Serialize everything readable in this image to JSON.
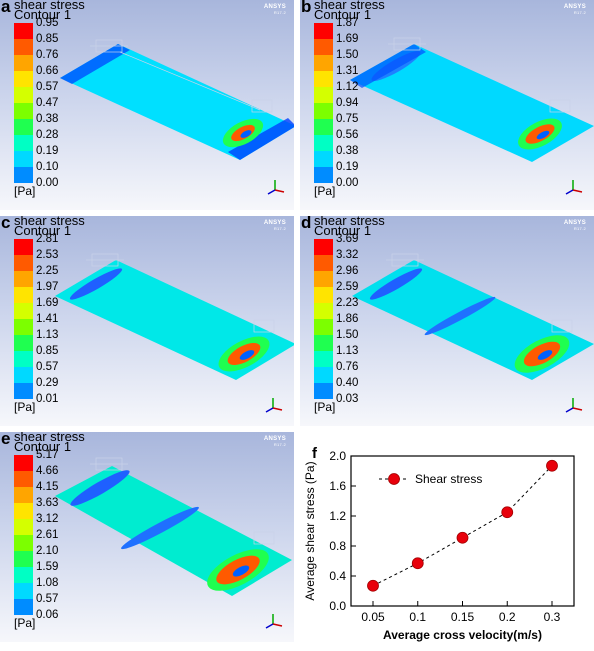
{
  "panels": [
    {
      "label": "a",
      "title": "shear stress",
      "subtitle": "Contour 1",
      "ticks": [
        "0.95",
        "0.85",
        "0.76",
        "0.66",
        "0.57",
        "0.47",
        "0.38",
        "0.28",
        "0.19",
        "0.10",
        "0.00"
      ],
      "unit": "[Pa]",
      "brand": "ANSYS",
      "brand_ver": "R17.2"
    },
    {
      "label": "b",
      "title": "shear stress",
      "subtitle": "Contour 1",
      "ticks": [
        "1.87",
        "1.69",
        "1.50",
        "1.31",
        "1.12",
        "0.94",
        "0.75",
        "0.56",
        "0.38",
        "0.19",
        "0.00"
      ],
      "unit": "[Pa]",
      "brand": "ANSYS",
      "brand_ver": "R17.2"
    },
    {
      "label": "c",
      "title": "shear stress",
      "subtitle": "Contour 1",
      "ticks": [
        "2.81",
        "2.53",
        "2.25",
        "1.97",
        "1.69",
        "1.41",
        "1.13",
        "0.85",
        "0.57",
        "0.29",
        "0.01"
      ],
      "unit": "[Pa]",
      "brand": "ANSYS",
      "brand_ver": "R17.2"
    },
    {
      "label": "d",
      "title": "shear stress",
      "subtitle": "Contour 1",
      "ticks": [
        "3.69",
        "3.32",
        "2.96",
        "2.59",
        "2.23",
        "1.86",
        "1.50",
        "1.13",
        "0.76",
        "0.40",
        "0.03"
      ],
      "unit": "[Pa]",
      "brand": "ANSYS",
      "brand_ver": "R17.2"
    },
    {
      "label": "e",
      "title": "shear stress",
      "subtitle": "Contour 1",
      "ticks": [
        "5.17",
        "4.66",
        "4.15",
        "3.63",
        "3.12",
        "2.61",
        "2.10",
        "1.59",
        "1.08",
        "0.57",
        "0.06"
      ],
      "unit": "[Pa]",
      "brand": "ANSYS",
      "brand_ver": "R17.2"
    }
  ],
  "colormap": [
    "#ff0000",
    "#ff5a00",
    "#ffa500",
    "#ffe400",
    "#d4ff00",
    "#7cff00",
    "#1fff50",
    "#00ffc4",
    "#00d9ff",
    "#008cff",
    "#0030ff"
  ],
  "chart_data": {
    "type": "line",
    "panel_label": "f",
    "x": [
      0.05,
      0.1,
      0.15,
      0.2,
      0.3
    ],
    "x_tick_labels": [
      "0.05",
      "0.1",
      "0.15",
      "0.2",
      "0.3"
    ],
    "series": [
      {
        "name": "Shear stress",
        "values": [
          0.27,
          0.57,
          0.91,
          1.25,
          1.87
        ],
        "color": "#e8000b",
        "line_style": "dashed"
      }
    ],
    "xlabel": "Average cross velocity(m/s)",
    "ylabel": "Average shear stress (Pa)",
    "ylim": [
      0.0,
      2.0
    ],
    "y_ticks": [
      "0.0",
      "0.4",
      "0.8",
      "1.2",
      "1.6",
      "2.0"
    ],
    "legend_position": "top-left",
    "grid": false
  }
}
